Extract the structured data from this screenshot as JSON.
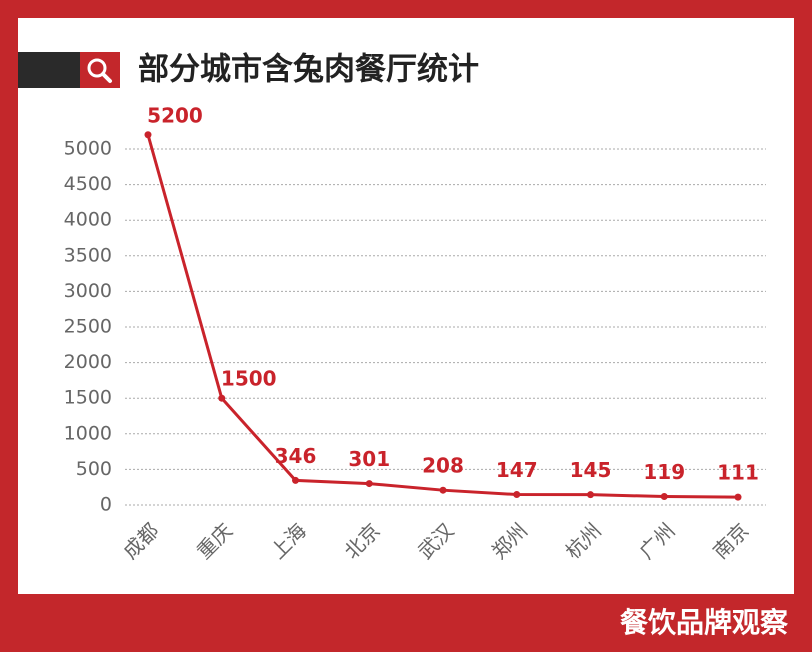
{
  "chart_data": {
    "type": "line",
    "title": "部分城市含兔肉餐厅统计",
    "brand": "餐饮品牌观察",
    "categories": [
      "成都",
      "重庆",
      "上海",
      "北京",
      "武汉",
      "郑州",
      "杭州",
      "广州",
      "南京"
    ],
    "values": [
      5200,
      1500,
      346,
      301,
      208,
      147,
      145,
      119,
      111
    ],
    "color": "#c9232b",
    "ylim": [
      0,
      5000
    ],
    "yticks": [
      0,
      500,
      1000,
      1500,
      2000,
      2500,
      3000,
      3500,
      4000,
      4500,
      5000
    ],
    "grid": true
  }
}
